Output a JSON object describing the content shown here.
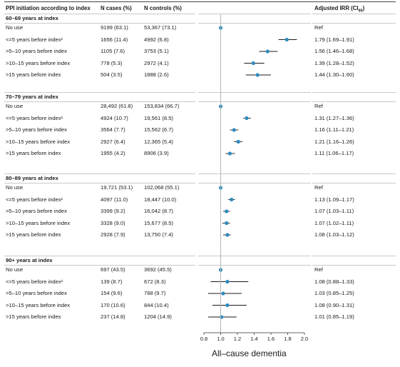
{
  "headers": {
    "label": "PPI initiation according to index",
    "cases": "N cases (%)",
    "controls": "N controls (%)",
    "irr": "Adjusted IRR (CI",
    "irr_sub": "95",
    "irr_close": ")"
  },
  "colors": {
    "point": "#2e8bbf",
    "line": "#1a1a1a",
    "ref_line": "#b5b5b5",
    "separator": "#c9c9c9"
  },
  "chart_data": {
    "type": "forest",
    "xlabel": "All–cause dementia",
    "xlim": [
      0.8,
      2.0
    ],
    "xticks": [
      0.8,
      1.0,
      1.2,
      1.4,
      1.6,
      1.8,
      2.0
    ],
    "xtick_labels": [
      "0.8",
      "1.0",
      "1.2",
      "1.4",
      "1.6",
      "1.8",
      "2.0"
    ],
    "ref_line": 1.0,
    "groups": [
      {
        "title": "60–69 years at index",
        "rows": [
          {
            "label": "No use",
            "cases": "9199 (63.1)",
            "controls": "53,367 (73.1)",
            "irr_text": "Ref",
            "irr": 1.0,
            "lo": null,
            "hi": null
          },
          {
            "label": "<=5 years before index¹",
            "cases": "1656 (11.4)",
            "controls": "4992 (6.8)",
            "irr_text": "1.79 (1.69–1.91)",
            "irr": 1.79,
            "lo": 1.69,
            "hi": 1.91
          },
          {
            "label": ">5–10 years before index",
            "cases": "1105 (7.6)",
            "controls": "3753 (5.1)",
            "irr_text": "1.56 (1.46–1.68)",
            "irr": 1.56,
            "lo": 1.46,
            "hi": 1.68
          },
          {
            "label": ">10–15 years before index",
            "cases": "778 (5.3)",
            "controls": "2972 (4.1)",
            "irr_text": "1.39 (1.28–1.52)",
            "irr": 1.39,
            "lo": 1.28,
            "hi": 1.52
          },
          {
            "label": ">15 years before index",
            "cases": "504 (3.5)",
            "controls": "1888 (2.6)",
            "irr_text": "1.44 (1.30–1.60)",
            "irr": 1.44,
            "lo": 1.3,
            "hi": 1.6
          }
        ]
      },
      {
        "title": "70–79 years at index",
        "rows": [
          {
            "label": "No use",
            "cases": "28,492 (61.8)",
            "controls": "153,834 (66.7)",
            "irr_text": "Ref",
            "irr": 1.0,
            "lo": null,
            "hi": null
          },
          {
            "label": "<=5 years before index¹",
            "cases": "4924 (10.7)",
            "controls": "19,561 (8.5)",
            "irr_text": "1.31 (1.27–1.36)",
            "irr": 1.31,
            "lo": 1.27,
            "hi": 1.36
          },
          {
            "label": ">5–10 years before index",
            "cases": "3564 (7.7)",
            "controls": "15,562 (6.7)",
            "irr_text": "1.16 (1.11–1.21)",
            "irr": 1.16,
            "lo": 1.11,
            "hi": 1.21
          },
          {
            "label": ">10–15 years before index",
            "cases": "2927 (6.4)",
            "controls": "12,365 (5.4)",
            "irr_text": "1.21 (1.16–1.26)",
            "irr": 1.21,
            "lo": 1.16,
            "hi": 1.26
          },
          {
            "label": ">15 years before index",
            "cases": "1955 (4.2)",
            "controls": "8906 (3.9)",
            "irr_text": "1.11 (1.06–1.17)",
            "irr": 1.11,
            "lo": 1.06,
            "hi": 1.17
          }
        ]
      },
      {
        "title": "80–89 years at index",
        "rows": [
          {
            "label": "No use",
            "cases": "19,721 (53.1)",
            "controls": "102,068 (55.1)",
            "irr_text": "Ref",
            "irr": 1.0,
            "lo": null,
            "hi": null
          },
          {
            "label": "<=5 years before index¹",
            "cases": "4097 (11.0)",
            "controls": "18,447 (10.0)",
            "irr_text": "1.13 (1.09–1.17)",
            "irr": 1.13,
            "lo": 1.09,
            "hi": 1.17
          },
          {
            "label": ">5–10 years before index",
            "cases": "3399 (9.2)",
            "controls": "16,042 (8.7)",
            "irr_text": "1.07 (1.03–1.11)",
            "irr": 1.07,
            "lo": 1.03,
            "hi": 1.11
          },
          {
            "label": ">10–15 years before index",
            "cases": "3328 (9.0)",
            "controls": "15,677 (8.5)",
            "irr_text": "1.07 (1.02–1.11)",
            "irr": 1.07,
            "lo": 1.02,
            "hi": 1.11
          },
          {
            "label": ">15 years before index",
            "cases": "2928 (7.9)",
            "controls": "13,750 (7.4)",
            "irr_text": "1.08 (1.03–1.12)",
            "irr": 1.08,
            "lo": 1.03,
            "hi": 1.12
          }
        ]
      },
      {
        "title": "90+ years at index",
        "rows": [
          {
            "label": "No use",
            "cases": "697 (43.5)",
            "controls": "3692 (45.5)",
            "irr_text": "Ref",
            "irr": 1.0,
            "lo": null,
            "hi": null
          },
          {
            "label": "<=5 years before index¹",
            "cases": "139 (8.7)",
            "controls": "672 (8.3)",
            "irr_text": "1.08 (0.88–1.33)",
            "irr": 1.08,
            "lo": 0.88,
            "hi": 1.33
          },
          {
            "label": ">5–10 years before index",
            "cases": "154 (9.6)",
            "controls": "788 (9.7)",
            "irr_text": "1.03 (0.85–1.25)",
            "irr": 1.03,
            "lo": 0.85,
            "hi": 1.25
          },
          {
            "label": ">10–15 years before index",
            "cases": "170 (10.6)",
            "controls": "844 (10.4)",
            "irr_text": "1.08 (0.90–1.31)",
            "irr": 1.08,
            "lo": 0.9,
            "hi": 1.31
          },
          {
            "label": ">15 years before index",
            "cases": "237 (14.8)",
            "controls": "1204 (14.9)",
            "irr_text": "1.01 (0.85–1.19)",
            "irr": 1.01,
            "lo": 0.85,
            "hi": 1.19
          }
        ]
      }
    ]
  }
}
